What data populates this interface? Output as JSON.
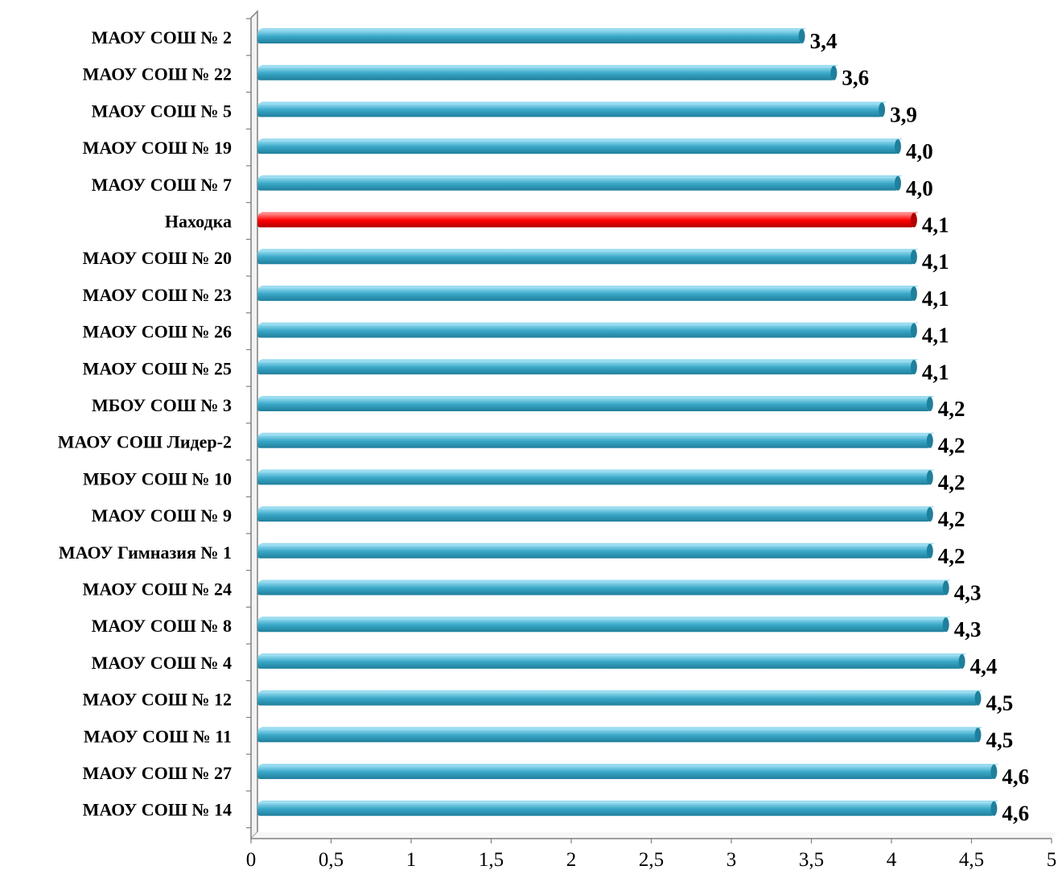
{
  "chart_data": {
    "type": "bar",
    "orientation": "horizontal",
    "categories": [
      "МАОУ СОШ № 2",
      "МАОУ СОШ № 22",
      "МАОУ СОШ № 5",
      "МАОУ СОШ № 19",
      "МАОУ СОШ № 7",
      "Находка",
      "МАОУ СОШ № 20",
      "МАОУ СОШ № 23",
      "МАОУ СОШ № 26",
      "МАОУ СОШ № 25",
      "МБОУ СОШ № 3",
      "МАОУ СОШ Лидер-2",
      "МБОУ СОШ № 10",
      "МАОУ СОШ № 9",
      "МАОУ Гимназия № 1",
      "МАОУ СОШ № 24",
      "МАОУ СОШ № 8",
      "МАОУ СОШ № 4",
      "МАОУ СОШ № 12",
      "МАОУ СОШ № 11",
      "МАОУ СОШ № 27",
      "МАОУ СОШ № 14"
    ],
    "values": [
      3.4,
      3.6,
      3.9,
      4.0,
      4.0,
      4.1,
      4.1,
      4.1,
      4.1,
      4.1,
      4.2,
      4.2,
      4.2,
      4.2,
      4.2,
      4.3,
      4.3,
      4.4,
      4.5,
      4.5,
      4.6,
      4.6
    ],
    "data_labels": [
      "3,4",
      "3,6",
      "3,9",
      "4,0",
      "4,0",
      "4,1",
      "4,1",
      "4,1",
      "4,1",
      "4,1",
      "4,2",
      "4,2",
      "4,2",
      "4,2",
      "4,2",
      "4,3",
      "4,3",
      "4,4",
      "4,5",
      "4,5",
      "4,6",
      "4,6"
    ],
    "highlight_category": "Находка",
    "x_ticks": [
      "0",
      "0,5",
      "1",
      "1,5",
      "2",
      "2,5",
      "3",
      "3,5",
      "4",
      "4,5",
      "5"
    ],
    "xlim": [
      0,
      5
    ],
    "title": "",
    "xlabel": "",
    "ylabel": "",
    "grid": false,
    "legend": "none",
    "colors": {
      "bar": "#3aa8c8",
      "bar_light": "#8fd8ee",
      "bar_dark": "#1f7f9c",
      "highlight": "#ff0000",
      "highlight_light": "#ff7a7a",
      "highlight_dark": "#b00000",
      "axis": "#808080"
    }
  }
}
